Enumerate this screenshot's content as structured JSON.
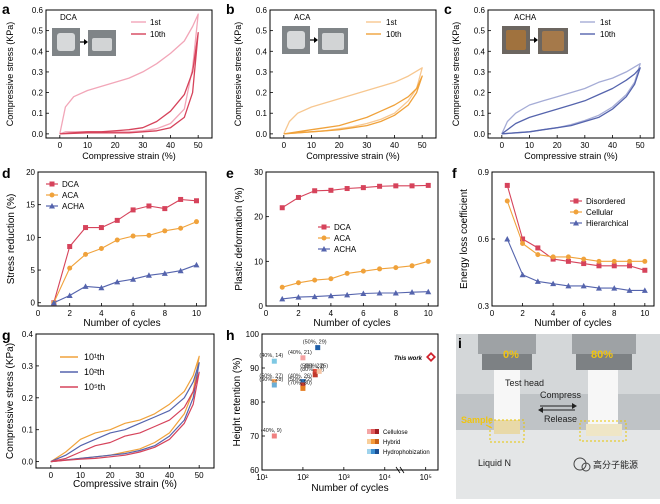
{
  "panels": {
    "a": {
      "letter": "a",
      "inset_label": "DCA",
      "legend": [
        "1st",
        "10th"
      ],
      "xlabel": "Compressive strain (%)",
      "ylabel": "Compressive stress (KPa)",
      "xticks": [
        "0",
        "10",
        "20",
        "30",
        "40",
        "50"
      ],
      "yticks": [
        "0.0",
        "0.1",
        "0.2",
        "0.3",
        "0.4",
        "0.5",
        "0.6"
      ]
    },
    "b": {
      "letter": "b",
      "inset_label": "ACA",
      "legend": [
        "1st",
        "10th"
      ],
      "xlabel": "Compressive strain (%)",
      "ylabel": "Compressive stress (KPa)",
      "xticks": [
        "0",
        "10",
        "20",
        "30",
        "40",
        "50"
      ],
      "yticks": [
        "0.0",
        "0.1",
        "0.2",
        "0.3",
        "0.4",
        "0.5",
        "0.6"
      ]
    },
    "c": {
      "letter": "c",
      "inset_label": "ACHA",
      "legend": [
        "1st",
        "10th"
      ],
      "xlabel": "Compressive strain (%)",
      "ylabel": "Compressive stress (KPa)",
      "xticks": [
        "0",
        "10",
        "20",
        "30",
        "40",
        "50"
      ],
      "yticks": [
        "0.0",
        "0.1",
        "0.2",
        "0.3",
        "0.4",
        "0.5",
        "0.6"
      ]
    },
    "d": {
      "letter": "d",
      "xlabel": "Number of cycles",
      "ylabel": "Stress reduction (%)",
      "xticks": [
        "0",
        "2",
        "4",
        "6",
        "8",
        "10"
      ],
      "yticks": [
        "0",
        "5",
        "10",
        "15",
        "20"
      ]
    },
    "e": {
      "letter": "e",
      "xlabel": "Number of cycles",
      "ylabel": "Plastic deformation (%)",
      "xticks": [
        "0",
        "2",
        "4",
        "6",
        "8",
        "10"
      ],
      "yticks": [
        "0",
        "10",
        "20",
        "30"
      ]
    },
    "f": {
      "letter": "f",
      "xlabel": "Number of cycles",
      "ylabel": "Energy loss coefficient",
      "xticks": [
        "0",
        "2",
        "4",
        "6",
        "8",
        "10"
      ],
      "yticks": [
        "0.3",
        "0.6",
        "0.9"
      ]
    },
    "g": {
      "letter": "g",
      "legend": [
        "10¹th",
        "10²th",
        "10⁵th"
      ],
      "xlabel": "Compressive strain (%)",
      "ylabel": "Compressive stress (KPa)",
      "xticks": [
        "0",
        "10",
        "20",
        "30",
        "40",
        "50"
      ],
      "yticks": [
        "0.0",
        "0.1",
        "0.2",
        "0.3",
        "0.4"
      ]
    },
    "h": {
      "letter": "h",
      "xlabel": "Number of cycles",
      "ylabel": "Height retention (%)",
      "xticks": [
        "10¹",
        "10²",
        "10³",
        "10⁴",
        "10⁵"
      ],
      "yticks": [
        "60",
        "70",
        "80",
        "90",
        "100"
      ],
      "this_work": "This work",
      "legend": [
        "Cellulose",
        "Hybrid",
        "Hydrophobization"
      ]
    },
    "i": {
      "letter": "i",
      "pct_left": "0%",
      "pct_right": "80%",
      "test_head": "Test head",
      "compress": "Compress",
      "release": "Release",
      "sample": "Sample",
      "liquid": "Liquid N",
      "watermark": "高分子能源"
    }
  },
  "colors": {
    "dca": "#d6435b",
    "aca": "#f0a23b",
    "acha": "#5564ad",
    "dca_light": "#f2a6b8",
    "aca_light": "#f7c790",
    "acha_light": "#a5acd6"
  },
  "chart_data": [
    {
      "panel": "a",
      "type": "line",
      "title": "DCA",
      "xlabel": "Compressive strain (%)",
      "ylabel": "Compressive stress (KPa)",
      "xlim": [
        -5,
        55
      ],
      "ylim": [
        -0.02,
        0.6
      ],
      "series": [
        {
          "name": "1st",
          "x": [
            0,
            2,
            5,
            10,
            15,
            20,
            25,
            30,
            35,
            40,
            45,
            48,
            50,
            48,
            45,
            40,
            35,
            30,
            25,
            20,
            15,
            10,
            5,
            2,
            0
          ],
          "y": [
            0,
            0.13,
            0.18,
            0.21,
            0.23,
            0.25,
            0.27,
            0.3,
            0.34,
            0.39,
            0.45,
            0.52,
            0.58,
            0.32,
            0.12,
            0.05,
            0.025,
            0.015,
            0.01,
            0.01,
            0.01,
            0.01,
            0.01,
            0.01,
            0
          ]
        },
        {
          "name": "10th",
          "x": [
            0,
            5,
            10,
            15,
            20,
            25,
            30,
            35,
            40,
            45,
            48,
            50,
            48,
            45,
            40,
            35,
            30,
            25,
            20,
            10,
            0
          ],
          "y": [
            0,
            0.005,
            0.01,
            0.01,
            0.015,
            0.02,
            0.03,
            0.06,
            0.11,
            0.19,
            0.3,
            0.49,
            0.2,
            0.08,
            0.03,
            0.015,
            0.01,
            0.005,
            0.005,
            0.005,
            0
          ]
        }
      ]
    },
    {
      "panel": "b",
      "type": "line",
      "title": "ACA",
      "xlabel": "Compressive strain (%)",
      "ylabel": "Compressive stress (KPa)",
      "xlim": [
        -5,
        55
      ],
      "ylim": [
        -0.02,
        0.6
      ],
      "series": [
        {
          "name": "1st",
          "x": [
            0,
            2,
            5,
            10,
            15,
            20,
            25,
            30,
            35,
            40,
            45,
            50,
            48,
            45,
            40,
            35,
            30,
            25,
            20,
            15,
            10,
            5,
            0
          ],
          "y": [
            0,
            0.06,
            0.1,
            0.13,
            0.15,
            0.17,
            0.19,
            0.21,
            0.23,
            0.25,
            0.28,
            0.32,
            0.22,
            0.16,
            0.1,
            0.07,
            0.05,
            0.035,
            0.025,
            0.015,
            0.01,
            0.005,
            0
          ]
        },
        {
          "name": "10th",
          "x": [
            0,
            5,
            10,
            15,
            20,
            25,
            30,
            35,
            40,
            45,
            48,
            50,
            48,
            45,
            40,
            35,
            30,
            25,
            20,
            15,
            10,
            5,
            0
          ],
          "y": [
            0,
            0.01,
            0.02,
            0.03,
            0.04,
            0.06,
            0.08,
            0.11,
            0.14,
            0.18,
            0.22,
            0.28,
            0.2,
            0.14,
            0.09,
            0.06,
            0.04,
            0.03,
            0.02,
            0.015,
            0.01,
            0.005,
            0
          ]
        }
      ]
    },
    {
      "panel": "c",
      "type": "line",
      "title": "ACHA",
      "xlabel": "Compressive strain (%)",
      "ylabel": "Compressive stress (KPa)",
      "xlim": [
        -5,
        55
      ],
      "ylim": [
        -0.02,
        0.6
      ],
      "series": [
        {
          "name": "1st",
          "x": [
            0,
            2,
            5,
            10,
            15,
            20,
            25,
            30,
            35,
            40,
            45,
            50,
            48,
            45,
            40,
            35,
            30,
            25,
            20,
            15,
            10,
            5,
            0
          ],
          "y": [
            0,
            0.06,
            0.1,
            0.14,
            0.16,
            0.18,
            0.2,
            0.22,
            0.25,
            0.27,
            0.3,
            0.34,
            0.25,
            0.19,
            0.13,
            0.09,
            0.065,
            0.045,
            0.03,
            0.02,
            0.01,
            0.005,
            0
          ]
        },
        {
          "name": "10th",
          "x": [
            0,
            5,
            10,
            15,
            20,
            25,
            30,
            35,
            40,
            45,
            48,
            50,
            48,
            45,
            40,
            35,
            30,
            25,
            20,
            15,
            10,
            5,
            0
          ],
          "y": [
            0,
            0.05,
            0.08,
            0.1,
            0.12,
            0.14,
            0.16,
            0.19,
            0.22,
            0.26,
            0.29,
            0.32,
            0.24,
            0.18,
            0.12,
            0.08,
            0.06,
            0.04,
            0.03,
            0.02,
            0.01,
            0.005,
            0
          ]
        }
      ]
    },
    {
      "panel": "d",
      "type": "line",
      "xlabel": "Number of cycles",
      "ylabel": "Stress reduction (%)",
      "xlim": [
        0,
        10.6
      ],
      "ylim": [
        -0.5,
        20
      ],
      "series": [
        {
          "name": "DCA",
          "x": [
            1,
            2,
            3,
            4,
            5,
            6,
            7,
            8,
            9,
            10
          ],
          "y": [
            0,
            8.6,
            11.5,
            11.5,
            12.6,
            14.2,
            14.8,
            14.4,
            15.8,
            15.6
          ]
        },
        {
          "name": "ACA",
          "x": [
            1,
            2,
            3,
            4,
            5,
            6,
            7,
            8,
            9,
            10
          ],
          "y": [
            0,
            5.3,
            7.4,
            8.3,
            9.6,
            10.2,
            10.3,
            11.0,
            11.4,
            12.4
          ]
        },
        {
          "name": "ACHA",
          "x": [
            1,
            2,
            3,
            4,
            5,
            6,
            7,
            8,
            9,
            10
          ],
          "y": [
            0,
            1.1,
            2.5,
            2.3,
            3.2,
            3.6,
            4.2,
            4.5,
            4.9,
            5.8
          ]
        }
      ]
    },
    {
      "panel": "e",
      "type": "line",
      "xlabel": "Number of cycles",
      "ylabel": "Plastic deformation (%)",
      "xlim": [
        0,
        10.6
      ],
      "ylim": [
        0,
        30
      ],
      "series": [
        {
          "name": "DCA",
          "x": [
            1,
            2,
            3,
            4,
            5,
            6,
            7,
            8,
            9,
            10
          ],
          "y": [
            22,
            24.3,
            25.8,
            25.9,
            26.3,
            26.5,
            26.8,
            26.9,
            26.9,
            27.0
          ]
        },
        {
          "name": "ACA",
          "x": [
            1,
            2,
            3,
            4,
            5,
            6,
            7,
            8,
            9,
            10
          ],
          "y": [
            4.2,
            5.2,
            5.8,
            6.1,
            7.3,
            7.8,
            8.3,
            8.6,
            9.0,
            10.0
          ]
        },
        {
          "name": "ACHA",
          "x": [
            1,
            2,
            3,
            4,
            5,
            6,
            7,
            8,
            9,
            10
          ],
          "y": [
            1.6,
            2.0,
            2.1,
            2.3,
            2.5,
            2.8,
            2.9,
            2.9,
            3.1,
            3.2
          ]
        }
      ]
    },
    {
      "panel": "f",
      "type": "line",
      "xlabel": "Number of cycles",
      "ylabel": "Energy loss coefficient",
      "xlim": [
        0,
        10.6
      ],
      "ylim": [
        0.3,
        0.9
      ],
      "series": [
        {
          "name": "Disordered",
          "x": [
            1,
            2,
            3,
            4,
            5,
            6,
            7,
            8,
            9,
            10
          ],
          "y": [
            0.84,
            0.6,
            0.56,
            0.51,
            0.5,
            0.49,
            0.48,
            0.48,
            0.48,
            0.46
          ]
        },
        {
          "name": "Cellular",
          "x": [
            1,
            2,
            3,
            4,
            5,
            6,
            7,
            8,
            9,
            10
          ],
          "y": [
            0.77,
            0.58,
            0.53,
            0.52,
            0.52,
            0.51,
            0.5,
            0.5,
            0.5,
            0.5
          ]
        },
        {
          "name": "Hierarchical",
          "x": [
            1,
            2,
            3,
            4,
            5,
            6,
            7,
            8,
            9,
            10
          ],
          "y": [
            0.6,
            0.44,
            0.41,
            0.4,
            0.39,
            0.39,
            0.38,
            0.38,
            0.37,
            0.37
          ]
        }
      ]
    },
    {
      "panel": "g",
      "type": "line",
      "xlabel": "Compressive strain (%)",
      "ylabel": "Compressive stress (KPa)",
      "xlim": [
        -5,
        55
      ],
      "ylim": [
        -0.02,
        0.4
      ],
      "series": [
        {
          "name": "10¹th",
          "x": [
            0,
            5,
            10,
            15,
            20,
            25,
            30,
            35,
            40,
            45,
            48,
            50,
            48,
            45,
            40,
            35,
            30,
            25,
            20,
            15,
            10,
            5,
            0
          ],
          "y": [
            0,
            0.03,
            0.07,
            0.09,
            0.1,
            0.12,
            0.13,
            0.15,
            0.18,
            0.22,
            0.27,
            0.33,
            0.22,
            0.15,
            0.09,
            0.06,
            0.04,
            0.03,
            0.02,
            0.015,
            0.01,
            0.005,
            0
          ]
        },
        {
          "name": "10²th",
          "x": [
            0,
            5,
            10,
            15,
            20,
            25,
            30,
            35,
            40,
            45,
            48,
            50,
            48,
            45,
            40,
            35,
            30,
            25,
            20,
            15,
            10,
            5,
            0
          ],
          "y": [
            0,
            0.02,
            0.05,
            0.07,
            0.09,
            0.1,
            0.12,
            0.14,
            0.16,
            0.2,
            0.25,
            0.31,
            0.2,
            0.13,
            0.08,
            0.05,
            0.035,
            0.025,
            0.02,
            0.015,
            0.01,
            0.005,
            0
          ]
        },
        {
          "name": "10⁵th",
          "x": [
            0,
            5,
            10,
            15,
            20,
            25,
            30,
            35,
            40,
            45,
            48,
            50,
            48,
            45,
            40,
            35,
            30,
            25,
            20,
            15,
            10,
            5,
            0
          ],
          "y": [
            0,
            0.01,
            0.03,
            0.05,
            0.06,
            0.08,
            0.09,
            0.11,
            0.13,
            0.17,
            0.22,
            0.28,
            0.18,
            0.12,
            0.07,
            0.045,
            0.03,
            0.02,
            0.015,
            0.01,
            0.008,
            0.004,
            0
          ]
        }
      ]
    },
    {
      "panel": "h",
      "type": "scatter",
      "xlabel": "Number of cycles",
      "ylabel": "Height retention (%)",
      "xscale": "log",
      "xlim": [
        10,
        200000
      ],
      "ylim": [
        60,
        100
      ],
      "points": [
        {
          "label": "(40%, 9)",
          "x": 20,
          "y": 70,
          "color": "#f08080"
        },
        {
          "label": "(40%, 14)",
          "x": 20,
          "y": 92,
          "color": "#7ec8e3"
        },
        {
          "label": "(40%, 21)",
          "x": 100,
          "y": 93,
          "color": "#f5a3a3"
        },
        {
          "label": "(50%, 29)",
          "x": 230,
          "y": 96,
          "color": "#1f5fa8"
        },
        {
          "label": "(50%, 27)",
          "x": 20,
          "y": 86,
          "color": "#f7a35c"
        },
        {
          "label": "(50%, 28)",
          "x": 20,
          "y": 85,
          "color": "#6baed6"
        },
        {
          "label": "(40%, 26)",
          "x": 100,
          "y": 86,
          "color": "#2b6cb0"
        },
        {
          "label": "(50%, 22)",
          "x": 100,
          "y": 85,
          "color": "#c0392b"
        },
        {
          "label": "(70%, 30)",
          "x": 100,
          "y": 84,
          "color": "#e67e22"
        },
        {
          "label": "(50%, 23)",
          "x": 200,
          "y": 89,
          "color": "#e74c3c"
        },
        {
          "label": "(80%, 24)",
          "x": 200,
          "y": 88,
          "color": "#c0392b"
        },
        {
          "label": "(60%, 25)",
          "x": 250,
          "y": 89,
          "color": "#f5c6a5"
        },
        {
          "label": "This work",
          "x": 100000,
          "y": 97,
          "color": "#d0212c"
        }
      ]
    }
  ]
}
